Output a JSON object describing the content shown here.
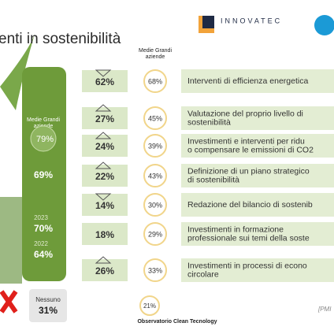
{
  "header": {
    "title": "enti in sostenibilità",
    "logo": "INNOVATEC"
  },
  "column_header": "Medie Grandi aziende",
  "left_panel": {
    "label": "Medie Grandi aziende",
    "big_value": "79%",
    "value_1": "69%",
    "year_1": "2023",
    "value_2": "70%",
    "year_2": "2022",
    "value_3": "64%"
  },
  "rows": [
    {
      "pmi": "62%",
      "large": "68%",
      "label": [
        "Interventi di efficienza energetica"
      ],
      "arrow": "down"
    },
    {
      "pmi": "27%",
      "large": "45%",
      "label": [
        "Valutazione del proprio livello di",
        "sostenibilità"
      ],
      "arrow": "up"
    },
    {
      "pmi": "24%",
      "large": "39%",
      "label": [
        "Investimenti e interventi per ridu",
        "o compensare le emissioni di CO2"
      ],
      "arrow": "up"
    },
    {
      "pmi": "22%",
      "large": "43%",
      "label": [
        "Definizione di un piano strategico",
        "di sostenibilità"
      ],
      "arrow": "up"
    },
    {
      "pmi": "14%",
      "large": "30%",
      "label": [
        "Redazione del bilancio di sostenib"
      ],
      "arrow": "down"
    },
    {
      "pmi": "18%",
      "large": "29%",
      "label": [
        "Investimenti in formazione",
        "professionale sui temi della soste"
      ],
      "arrow": "none"
    },
    {
      "pmi": "26%",
      "large": "33%",
      "label": [
        "Investimenti in processi di econo",
        "circolare"
      ],
      "arrow": "up"
    }
  ],
  "none_row": {
    "label": "Nessuno",
    "pmi": "31%",
    "large": "21%"
  },
  "footer": {
    "source": "Observatorio Clean Tecnology",
    "note": "[PMI"
  }
}
